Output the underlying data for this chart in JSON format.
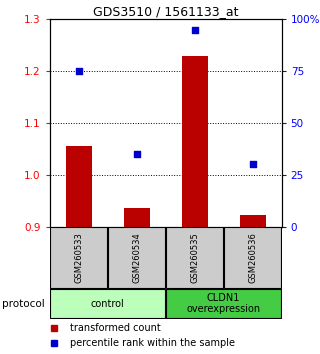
{
  "title": "GDS3510 / 1561133_at",
  "samples": [
    "GSM260533",
    "GSM260534",
    "GSM260535",
    "GSM260536"
  ],
  "bar_values": [
    1.055,
    0.935,
    1.23,
    0.922
  ],
  "bar_baseline": 0.9,
  "percentile_values": [
    75,
    35,
    95,
    30
  ],
  "ylim_left": [
    0.9,
    1.3
  ],
  "ylim_right": [
    0,
    100
  ],
  "yticks_left": [
    0.9,
    1.0,
    1.1,
    1.2,
    1.3
  ],
  "yticks_right": [
    0,
    25,
    50,
    75,
    100
  ],
  "ytick_labels_right": [
    "0",
    "25",
    "50",
    "75",
    "100%"
  ],
  "bar_color": "#bb0000",
  "scatter_color": "#0000cc",
  "groups": [
    {
      "label": "control",
      "samples": [
        0,
        1
      ],
      "color": "#bbffbb"
    },
    {
      "label": "CLDN1\noverexpression",
      "samples": [
        2,
        3
      ],
      "color": "#44cc44"
    }
  ],
  "protocol_label": "protocol",
  "legend_bar_label": "transformed count",
  "legend_scatter_label": "percentile rank within the sample",
  "sample_box_color": "#cccccc"
}
